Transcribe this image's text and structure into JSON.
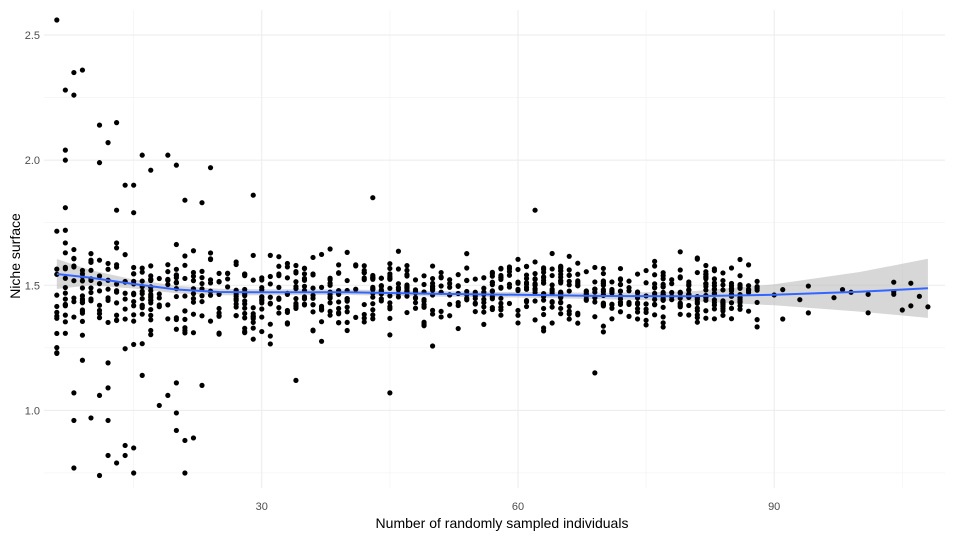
{
  "chart_data": {
    "type": "scatter",
    "title": "",
    "xlabel": "Number of randomly sampled individuals",
    "ylabel": "Niche surface",
    "xlim": [
      4.5,
      110
    ],
    "ylim": [
      0.69,
      2.6
    ],
    "x_ticks": [
      30,
      60,
      90
    ],
    "x_tick_labels": [
      "30",
      "60",
      "90"
    ],
    "y_ticks": [
      1.0,
      1.5,
      2.0,
      2.5
    ],
    "y_tick_labels": [
      "1.0",
      "1.5",
      "2.0",
      "2.5"
    ],
    "grid": true,
    "legend": "none",
    "point_color": "#000000",
    "smooth_color": "#3366ff",
    "band_color": "#bdbdbd",
    "outlier_points": [
      [
        6,
        2.56
      ],
      [
        7,
        2.28
      ],
      [
        8,
        2.35
      ],
      [
        8,
        2.26
      ],
      [
        9,
        2.36
      ],
      [
        7,
        2.04
      ],
      [
        7,
        2.0
      ],
      [
        7,
        1.81
      ],
      [
        11,
        2.14
      ],
      [
        12,
        2.07
      ],
      [
        13,
        2.15
      ],
      [
        11,
        1.99
      ],
      [
        14,
        1.9
      ],
      [
        15,
        1.9
      ],
      [
        16,
        2.02
      ],
      [
        17,
        1.96
      ],
      [
        19,
        2.02
      ],
      [
        20,
        1.98
      ],
      [
        21,
        1.84
      ],
      [
        23,
        1.83
      ],
      [
        24,
        1.97
      ],
      [
        29,
        1.86
      ],
      [
        43,
        1.85
      ],
      [
        62,
        1.8
      ],
      [
        7,
        1.72
      ],
      [
        13,
        1.8
      ],
      [
        15,
        1.79
      ],
      [
        8,
        1.07
      ],
      [
        8,
        0.96
      ],
      [
        8,
        0.77
      ],
      [
        10,
        0.97
      ],
      [
        11,
        0.74
      ],
      [
        12,
        0.96
      ],
      [
        12,
        0.82
      ],
      [
        13,
        0.79
      ],
      [
        14,
        0.86
      ],
      [
        14,
        0.82
      ],
      [
        15,
        0.75
      ],
      [
        15,
        0.85
      ],
      [
        18,
        1.02
      ],
      [
        19,
        1.06
      ],
      [
        20,
        0.99
      ],
      [
        20,
        0.92
      ],
      [
        21,
        0.75
      ],
      [
        22,
        0.89
      ],
      [
        21,
        0.88
      ],
      [
        12,
        1.09
      ],
      [
        11,
        1.06
      ],
      [
        23,
        1.1
      ],
      [
        45,
        1.07
      ],
      [
        16,
        1.14
      ],
      [
        20,
        1.11
      ],
      [
        69,
        1.15
      ],
      [
        34,
        1.12
      ],
      [
        101,
        1.39
      ]
    ],
    "bulk_sample_count": 900,
    "bulk_x_range": [
      6,
      88
    ],
    "bulk_center": 1.47,
    "sparse_tail_x_range": [
      86,
      108
    ],
    "smooth_line": {
      "x": [
        6,
        10,
        15,
        20,
        25,
        30,
        40,
        50,
        60,
        70,
        80,
        90,
        100,
        108
      ],
      "y": [
        1.545,
        1.53,
        1.505,
        1.483,
        1.473,
        1.472,
        1.472,
        1.466,
        1.462,
        1.457,
        1.456,
        1.462,
        1.474,
        1.488
      ]
    },
    "confidence_band": {
      "x": [
        6,
        10,
        15,
        20,
        25,
        30,
        40,
        50,
        60,
        70,
        80,
        90,
        100,
        108
      ],
      "lower": [
        1.485,
        1.5,
        1.487,
        1.468,
        1.46,
        1.46,
        1.461,
        1.455,
        1.451,
        1.444,
        1.437,
        1.42,
        1.395,
        1.37
      ],
      "upper": [
        1.605,
        1.56,
        1.523,
        1.498,
        1.486,
        1.484,
        1.483,
        1.477,
        1.473,
        1.47,
        1.475,
        1.504,
        1.553,
        1.606
      ]
    }
  }
}
